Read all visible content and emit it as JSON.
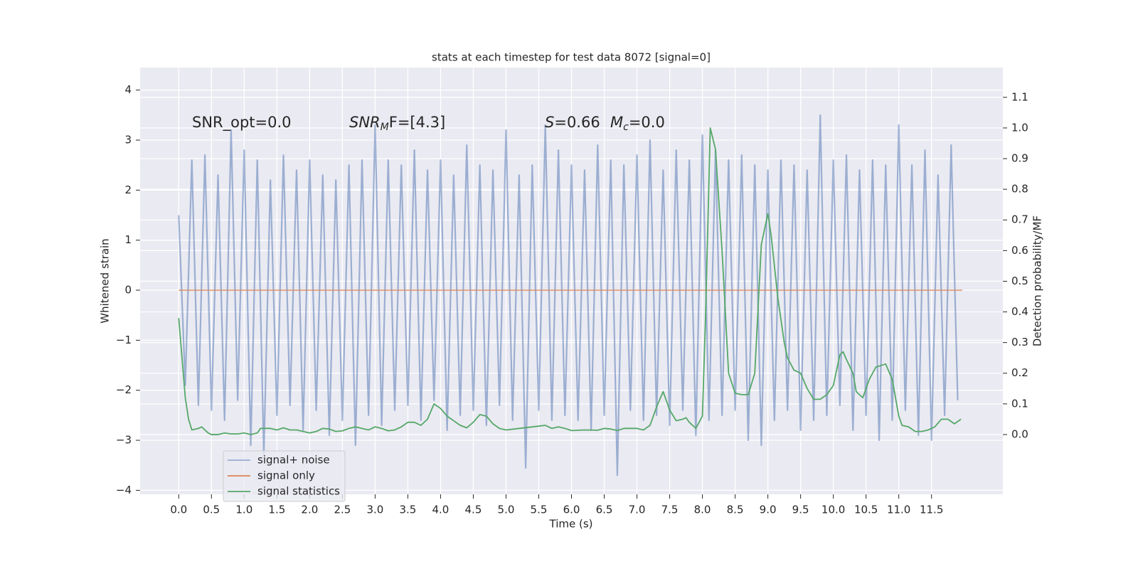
{
  "chart_data": {
    "type": "line",
    "title": "stats at each timestep for test data 8072 [signal=0]",
    "x_label": "Time (s)",
    "y_label": "Whitened strain",
    "y2_label": "Detection probability/MF",
    "grid": true,
    "legend": "lower left",
    "background": "#eaeaf2",
    "xlim": [
      -0.59,
      12.59
    ],
    "ylim": [
      -4.08,
      4.45
    ],
    "y2lim": [
      -0.195,
      1.197
    ],
    "xticks": [
      {
        "value": 0,
        "label": "0.0"
      },
      0.5,
      {
        "value": 1,
        "label": "1.0"
      },
      1.5,
      {
        "value": 2,
        "label": "2.0"
      },
      2.5,
      {
        "value": 3,
        "label": "3.0"
      },
      3.5,
      {
        "value": 4,
        "label": "4.0"
      },
      4.5,
      {
        "value": 5,
        "label": "5.0"
      },
      5.5,
      {
        "value": 6,
        "label": "6.0"
      },
      6.5,
      {
        "value": 7,
        "label": "7.0"
      },
      7.5,
      {
        "value": 8,
        "label": "8.0"
      },
      8.5,
      {
        "value": 9,
        "label": "9.0"
      },
      9.5,
      {
        "value": 10,
        "label": "10.0"
      },
      10.5,
      {
        "value": 11,
        "label": "11.0"
      },
      11.5
    ],
    "yticks": [
      {
        "value": -4,
        "label": "−4"
      },
      {
        "value": -3,
        "label": "−3"
      },
      {
        "value": -2,
        "label": "−2"
      },
      {
        "value": -1,
        "label": "−1"
      },
      0,
      1,
      2,
      3,
      4
    ],
    "y2ticks": [
      {
        "value": 0,
        "label": "0.0"
      },
      0.1,
      0.2,
      0.3,
      0.4,
      0.5,
      0.6,
      0.7,
      0.8,
      0.9,
      {
        "value": 1,
        "label": "1.0"
      },
      1.1
    ],
    "annotations": [
      {
        "text": "SNR_opt=0.0"
      },
      {
        "text": "SNR",
        "sub": "M",
        "tail": "F=[4.3]"
      },
      {
        "text": "S",
        "tail": "=0.66"
      },
      {
        "text": "M",
        "sub": "c",
        "tail": "=0.0"
      }
    ],
    "series": [
      {
        "name": "signal+ noise",
        "color": "#4c72b0",
        "opacity": 0.5,
        "x": [
          0.0,
          0.1,
          0.2,
          0.3,
          0.4,
          0.5,
          0.6,
          0.7,
          0.8,
          0.9,
          1.0,
          1.1,
          1.2,
          1.3,
          1.4,
          1.5,
          1.6,
          1.7,
          1.8,
          1.9,
          2.0,
          2.1,
          2.2,
          2.3,
          2.4,
          2.5,
          2.6,
          2.7,
          2.8,
          2.9,
          3.0,
          3.1,
          3.2,
          3.3,
          3.4,
          3.5,
          3.6,
          3.7,
          3.8,
          3.9,
          4.0,
          4.1,
          4.2,
          4.3,
          4.4,
          4.5,
          4.6,
          4.7,
          4.8,
          4.9,
          5.0,
          5.1,
          5.2,
          5.3,
          5.4,
          5.5,
          5.6,
          5.7,
          5.8,
          5.9,
          6.0,
          6.1,
          6.2,
          6.3,
          6.4,
          6.5,
          6.6,
          6.7,
          6.8,
          6.9,
          7.0,
          7.1,
          7.2,
          7.3,
          7.4,
          7.5,
          7.6,
          7.7,
          7.8,
          7.9,
          8.0,
          8.1,
          8.2,
          8.3,
          8.4,
          8.5,
          8.6,
          8.7,
          8.8,
          8.9,
          9.0,
          9.1,
          9.2,
          9.3,
          9.4,
          9.5,
          9.6,
          9.7,
          9.8,
          9.9,
          10.0,
          10.1,
          10.2,
          10.3,
          10.4,
          10.5,
          10.6,
          10.7,
          10.8,
          10.9,
          11.0,
          11.1,
          11.2,
          11.3,
          11.4,
          11.5,
          11.6,
          11.7,
          11.8,
          11.9
        ],
        "values": [
          1.5,
          -1.9,
          2.6,
          -2.3,
          2.7,
          -2.4,
          2.3,
          -2.6,
          3.2,
          -2.2,
          2.8,
          -3.1,
          2.6,
          -3.3,
          2.2,
          -2.5,
          2.7,
          -2.3,
          2.4,
          -2.8,
          2.6,
          -2.4,
          2.3,
          -2.9,
          2.2,
          -2.6,
          2.5,
          -3.1,
          2.6,
          -2.5,
          3.3,
          -2.7,
          2.6,
          -2.4,
          2.5,
          -2.3,
          2.8,
          -2.6,
          2.4,
          -2.2,
          2.6,
          -2.8,
          2.3,
          -2.5,
          2.9,
          -2.4,
          2.5,
          -2.7,
          2.4,
          -2.3,
          3.2,
          -2.6,
          2.3,
          -3.55,
          2.5,
          -2.4,
          3.3,
          -2.6,
          2.8,
          -2.5,
          2.5,
          -2.6,
          2.4,
          -2.8,
          2.9,
          -2.5,
          2.6,
          -3.7,
          2.5,
          -2.4,
          2.7,
          -2.6,
          3.0,
          -2.5,
          2.4,
          -2.7,
          2.8,
          -2.4,
          2.6,
          -2.9,
          3.1,
          -2.6,
          2.8,
          -2.5,
          2.6,
          -2.4,
          2.7,
          -3.0,
          2.5,
          -3.1,
          2.4,
          -2.6,
          2.6,
          -2.4,
          2.5,
          -2.8,
          2.4,
          -2.6,
          3.5,
          -2.5,
          2.6,
          -2.3,
          2.7,
          -2.8,
          2.4,
          -2.5,
          2.6,
          -3.0,
          2.5,
          -2.6,
          3.3,
          -2.4,
          2.5,
          -2.9,
          2.8,
          -3.0,
          2.3,
          -2.5,
          2.9,
          -2.2
        ]
      },
      {
        "name": "signal only",
        "color": "#dd8452",
        "x": [
          0.0,
          11.97
        ],
        "values": [
          0,
          0
        ]
      },
      {
        "name": "signal statistics",
        "color": "#55a868",
        "axis": "y2",
        "x": [
          0.0,
          0.05,
          0.1,
          0.15,
          0.2,
          0.3,
          0.35,
          0.45,
          0.5,
          0.6,
          0.7,
          0.8,
          0.9,
          1.0,
          1.1,
          1.2,
          1.25,
          1.4,
          1.5,
          1.6,
          1.7,
          1.8,
          1.9,
          2.0,
          2.1,
          2.2,
          2.3,
          2.4,
          2.5,
          2.6,
          2.7,
          2.8,
          2.9,
          3.0,
          3.1,
          3.2,
          3.3,
          3.4,
          3.5,
          3.6,
          3.7,
          3.8,
          3.9,
          4.0,
          4.1,
          4.2,
          4.3,
          4.4,
          4.5,
          4.6,
          4.7,
          4.8,
          4.9,
          5.0,
          5.2,
          5.4,
          5.6,
          5.7,
          5.8,
          5.9,
          6.0,
          6.2,
          6.4,
          6.5,
          6.6,
          6.7,
          6.8,
          7.0,
          7.1,
          7.2,
          7.3,
          7.4,
          7.5,
          7.6,
          7.7,
          7.75,
          7.8,
          7.9,
          8.0,
          8.05,
          8.12,
          8.2,
          8.3,
          8.4,
          8.5,
          8.6,
          8.7,
          8.8,
          8.9,
          9.0,
          9.05,
          9.15,
          9.25,
          9.3,
          9.4,
          9.5,
          9.6,
          9.7,
          9.8,
          9.9,
          10.0,
          10.1,
          10.15,
          10.2,
          10.3,
          10.35,
          10.45,
          10.55,
          10.65,
          10.8,
          10.9,
          11.0,
          11.05,
          11.15,
          11.25,
          11.35,
          11.45,
          11.55,
          11.65,
          11.75,
          11.85,
          11.95
        ],
        "values": [
          0.38,
          0.25,
          0.12,
          0.05,
          0.015,
          0.02,
          0.025,
          0.005,
          0.0,
          0.0,
          0.005,
          0.002,
          0.002,
          0.005,
          0.0,
          0.005,
          0.02,
          0.02,
          0.015,
          0.022,
          0.015,
          0.015,
          0.01,
          0.005,
          0.01,
          0.02,
          0.018,
          0.01,
          0.012,
          0.02,
          0.025,
          0.02,
          0.015,
          0.025,
          0.02,
          0.012,
          0.015,
          0.025,
          0.04,
          0.04,
          0.03,
          0.05,
          0.1,
          0.085,
          0.06,
          0.045,
          0.03,
          0.022,
          0.04,
          0.065,
          0.06,
          0.035,
          0.02,
          0.015,
          0.02,
          0.025,
          0.03,
          0.02,
          0.025,
          0.02,
          0.013,
          0.015,
          0.014,
          0.02,
          0.018,
          0.013,
          0.02,
          0.02,
          0.015,
          0.03,
          0.09,
          0.14,
          0.08,
          0.045,
          0.05,
          0.055,
          0.04,
          0.02,
          0.06,
          0.4,
          1.0,
          0.93,
          0.6,
          0.2,
          0.135,
          0.13,
          0.13,
          0.2,
          0.62,
          0.72,
          0.65,
          0.45,
          0.3,
          0.25,
          0.21,
          0.2,
          0.15,
          0.115,
          0.115,
          0.13,
          0.16,
          0.26,
          0.27,
          0.245,
          0.2,
          0.14,
          0.12,
          0.18,
          0.22,
          0.23,
          0.18,
          0.06,
          0.03,
          0.025,
          0.01,
          0.01,
          0.015,
          0.025,
          0.05,
          0.05,
          0.035,
          0.05
        ]
      }
    ]
  }
}
